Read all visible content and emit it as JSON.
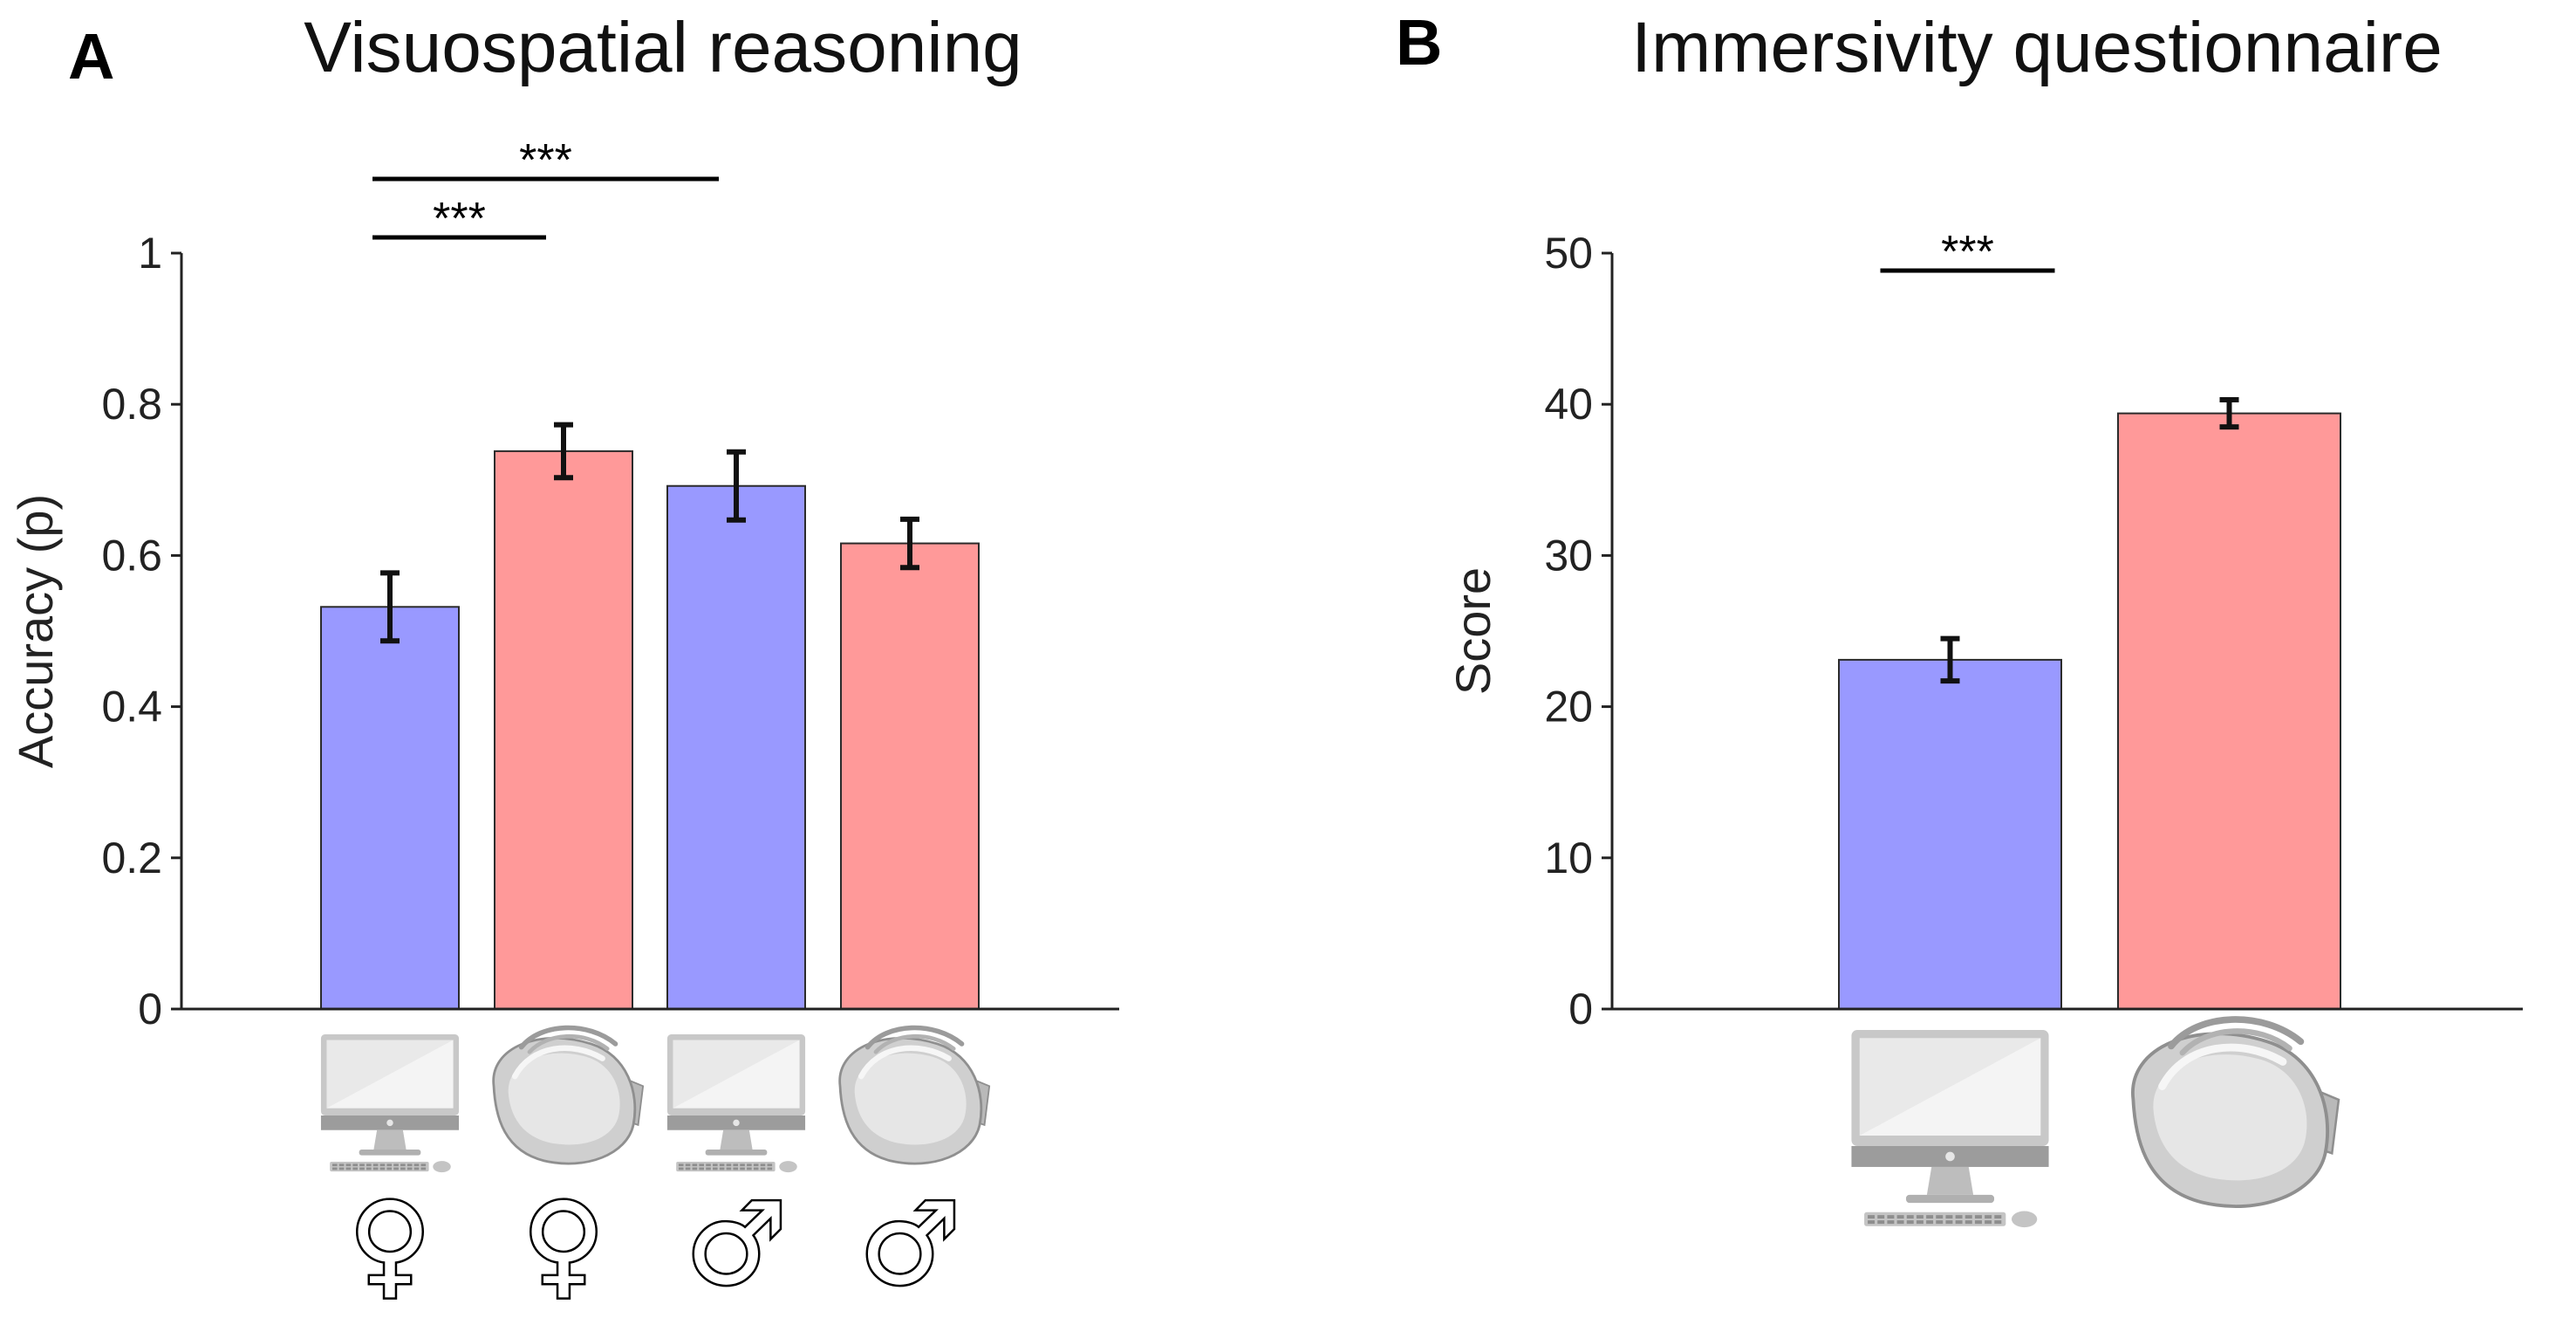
{
  "chart_data": [
    {
      "type": "bar",
      "panel_label": "A",
      "title": "Visuospatial reasoning",
      "ylabel": "Accuracy (p)",
      "ylim": [
        0,
        1
      ],
      "yticks": [
        0,
        0.2,
        0.4,
        0.6,
        0.8,
        1
      ],
      "ytick_labels": [
        "0",
        "0.2",
        "0.4",
        "0.6",
        "0.8",
        "1"
      ],
      "categories": [
        "female-monitor",
        "female-vr",
        "male-monitor",
        "male-vr"
      ],
      "category_icons": [
        "monitor-icon",
        "vr-headset-icon",
        "monitor-icon",
        "vr-headset-icon"
      ],
      "category_symbols": [
        "♀",
        "♀",
        "♂",
        "♂"
      ],
      "values": [
        0.532,
        0.738,
        0.692,
        0.616
      ],
      "errors": [
        0.045,
        0.035,
        0.045,
        0.032
      ],
      "colors": [
        "#9999ff",
        "#ff9999",
        "#9999ff",
        "#ff9999"
      ],
      "significance": [
        {
          "from": 0,
          "to": 1,
          "label": "***"
        },
        {
          "from": 0,
          "to": 2,
          "label": "***"
        }
      ]
    },
    {
      "type": "bar",
      "panel_label": "B",
      "title": "Immersivity questionnaire",
      "ylabel": "Score",
      "ylim": [
        0,
        50
      ],
      "yticks": [
        0,
        10,
        20,
        30,
        40,
        50
      ],
      "ytick_labels": [
        "0",
        "10",
        "20",
        "30",
        "40",
        "50"
      ],
      "categories": [
        "monitor",
        "vr"
      ],
      "category_icons": [
        "monitor-icon",
        "vr-headset-icon"
      ],
      "category_symbols": [],
      "values": [
        23.1,
        39.4
      ],
      "errors": [
        1.4,
        0.9
      ],
      "colors": [
        "#9999ff",
        "#ff9999"
      ],
      "significance": [
        {
          "from": 0,
          "to": 1,
          "label": "***"
        }
      ]
    }
  ]
}
